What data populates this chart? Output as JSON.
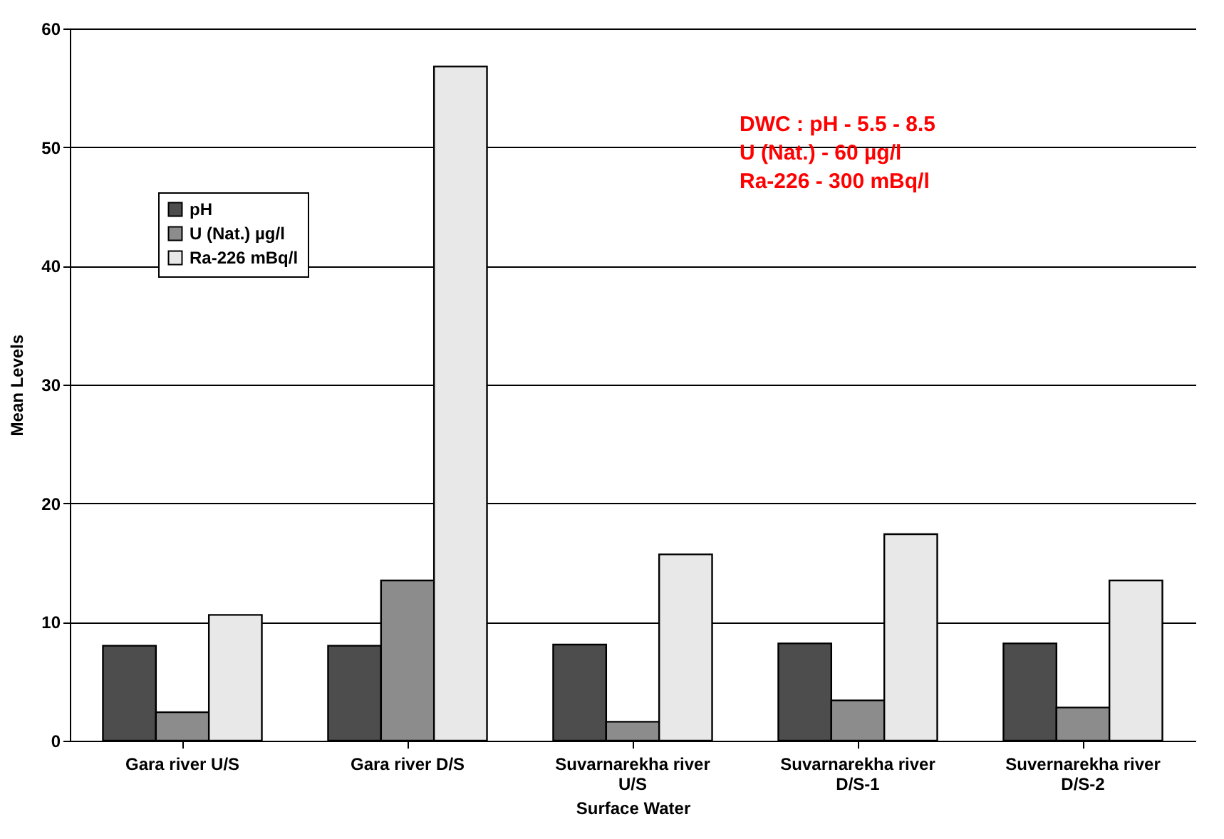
{
  "chart_data": {
    "type": "bar",
    "xlabel": "Surface Water",
    "ylabel": "Mean Levels",
    "categories": [
      "Gara river U/S",
      "Gara river D/S",
      "Suvarnarekha river U/S",
      "Suvarnarekha river D/S-1",
      "Suvernarekha river D/S-2"
    ],
    "series": [
      {
        "name": "pH",
        "color": "#4d4d4d",
        "values": [
          8.0,
          8.0,
          8.1,
          8.2,
          8.2
        ]
      },
      {
        "name": "U (Nat.) µg/l",
        "color": "#8c8c8c",
        "values": [
          2.4,
          13.5,
          1.6,
          3.4,
          2.8
        ]
      },
      {
        "name": "Ra-226 mBq/l",
        "color": "#e8e8e8",
        "values": [
          10.6,
          56.8,
          15.7,
          17.4,
          13.5
        ]
      }
    ],
    "ylim": [
      0,
      60
    ],
    "yticks": [
      0,
      10,
      20,
      30,
      40,
      50,
      60
    ],
    "grid": "y",
    "legend": "top left",
    "annotations": [
      "DWC : pH - 5.5 - 8.5",
      "U (Nat.) - 60 µg/l",
      "Ra-226 - 300 mBq/l"
    ]
  }
}
